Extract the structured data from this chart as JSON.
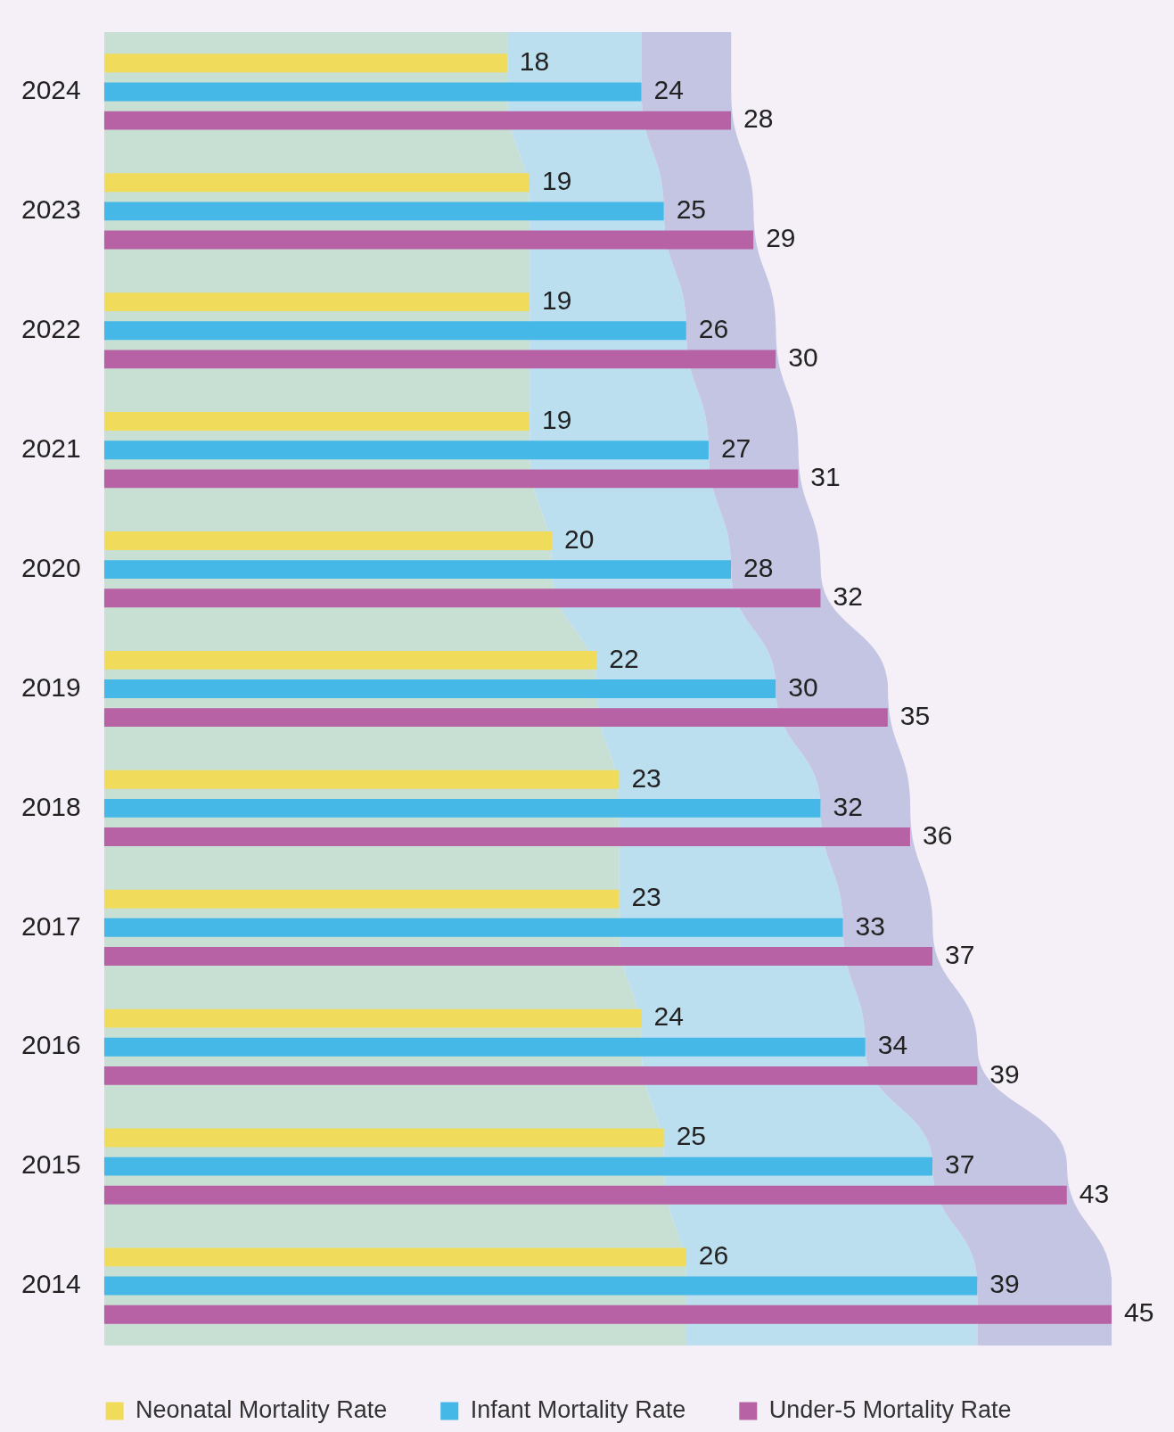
{
  "chart_data": {
    "type": "bar",
    "orientation": "horizontal",
    "categories": [
      "2024",
      "2023",
      "2022",
      "2021",
      "2020",
      "2019",
      "2018",
      "2017",
      "2016",
      "2015",
      "2014"
    ],
    "series": [
      {
        "name": "Neonatal Mortality Rate",
        "color": "#f0dc5a",
        "values": [
          18,
          19,
          19,
          19,
          20,
          22,
          23,
          23,
          24,
          25,
          26
        ]
      },
      {
        "name": "Infant Mortality Rate",
        "color": "#45b8e8",
        "values": [
          24,
          25,
          26,
          27,
          28,
          30,
          32,
          33,
          34,
          37,
          39
        ]
      },
      {
        "name": "Under-5 Mortality Rate",
        "color": "#b862a6",
        "values": [
          28,
          29,
          30,
          31,
          32,
          35,
          36,
          37,
          39,
          43,
          45
        ]
      }
    ],
    "xlim": [
      0,
      45
    ],
    "tick_labels": "y",
    "data_labels": true,
    "legend": "bottom"
  }
}
